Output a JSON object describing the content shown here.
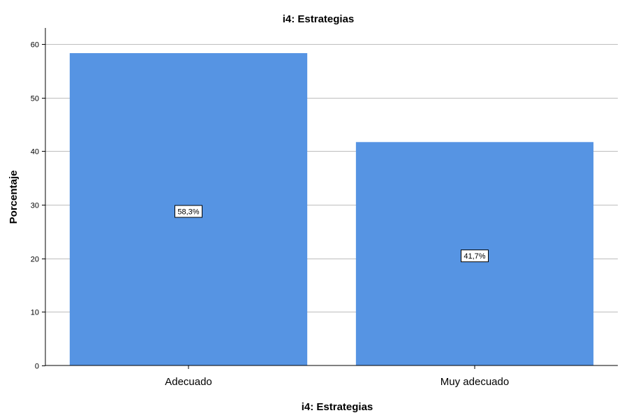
{
  "chart_data": {
    "type": "bar",
    "title": "i4: Estrategias",
    "xlabel": "i4: Estrategias",
    "ylabel": "Porcentaje",
    "categories": [
      "Adecuado",
      "Muy adecuado"
    ],
    "values": [
      58.3,
      41.7
    ],
    "data_labels": [
      "58,3%",
      "41,7%"
    ],
    "ylim": [
      0,
      63
    ],
    "yticks": [
      0,
      10,
      20,
      30,
      40,
      50,
      60
    ],
    "grid": true,
    "legend": "none",
    "bar_color": "#5694e3"
  }
}
